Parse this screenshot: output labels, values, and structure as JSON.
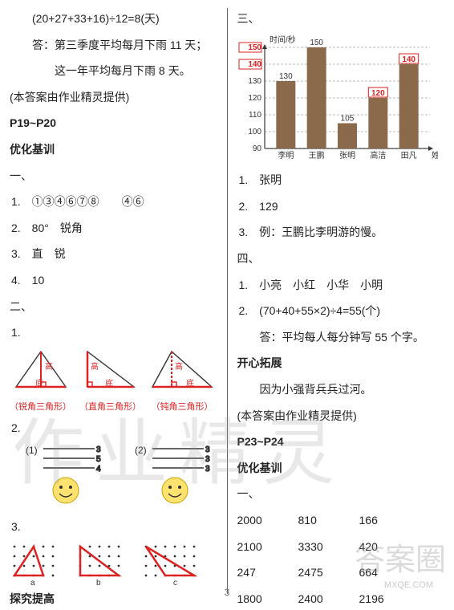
{
  "left": {
    "eq1": "(20+27+33+16)÷12=8(天)",
    "ans1a": "答：第三季度平均每月下雨 11 天；",
    "ans1b": "这一年平均每月下雨 8 天。",
    "note1": "(本答案由作业精灵提供)",
    "pageRef": "P19~P20",
    "sec1": "优化基训",
    "h1": "一、",
    "i1": "1.　①③④⑥⑦⑧　　④⑥",
    "i2": "2.　80°　锐角",
    "i3": "3.　直　锐",
    "i4": "4.　10",
    "h2": "二、",
    "i2_1": "1.",
    "tri": {
      "cap1": "（锐角三角形）",
      "cap2": "（直角三角形）",
      "cap3": "（钝角三角形）",
      "base": "底",
      "height": "高"
    },
    "i2_2": "2.",
    "g1a": "(1)",
    "g1b": "(2)",
    "i2_3": "3.",
    "sec2": "探究提高"
  },
  "right": {
    "h3": "三、",
    "chart": {
      "ylabel": "时间/秒",
      "xlabel": "姓名",
      "yticks": [
        90,
        100,
        110,
        120,
        130,
        140,
        150
      ],
      "names": [
        "李明",
        "王鹏",
        "张明",
        "高洁",
        "田凡"
      ],
      "values": [
        130,
        150,
        105,
        120,
        140
      ],
      "valueLabels": [
        "130",
        "150",
        "105",
        "120",
        "140"
      ],
      "redLabels": [
        false,
        false,
        false,
        true,
        true
      ],
      "barColor": "#8a6a4a",
      "gridColor": "#777",
      "redColor": "#d22",
      "bg": "#fff"
    },
    "r1": "1.　张明",
    "r2": "2.　129",
    "r3": "3.　例：王鹏比李明游的慢。",
    "h4": "四、",
    "r4_1": "1.　小亮　小红　小华　小明",
    "r4_2": "2.　(70+40+55×2)÷4=55(个)",
    "r4_2b": "答：平均每人每分钟写 55 个字。",
    "sec3": "开心拓展",
    "r5": "　　因为小强背兵兵过河。",
    "note2": "(本答案由作业精灵提供)",
    "pageRef2": "P23~P24",
    "sec4": "优化基训",
    "h5": "一、",
    "nums": [
      [
        "2000",
        "810",
        "166"
      ],
      [
        "2100",
        "3330",
        "420"
      ],
      [
        "247",
        "2475",
        "664"
      ],
      [
        "1800",
        "2400",
        "2196"
      ]
    ]
  },
  "pagenum": "3",
  "wm1": "作业精灵",
  "wm2": "答案圈",
  "wm3": "MXQE.COM"
}
